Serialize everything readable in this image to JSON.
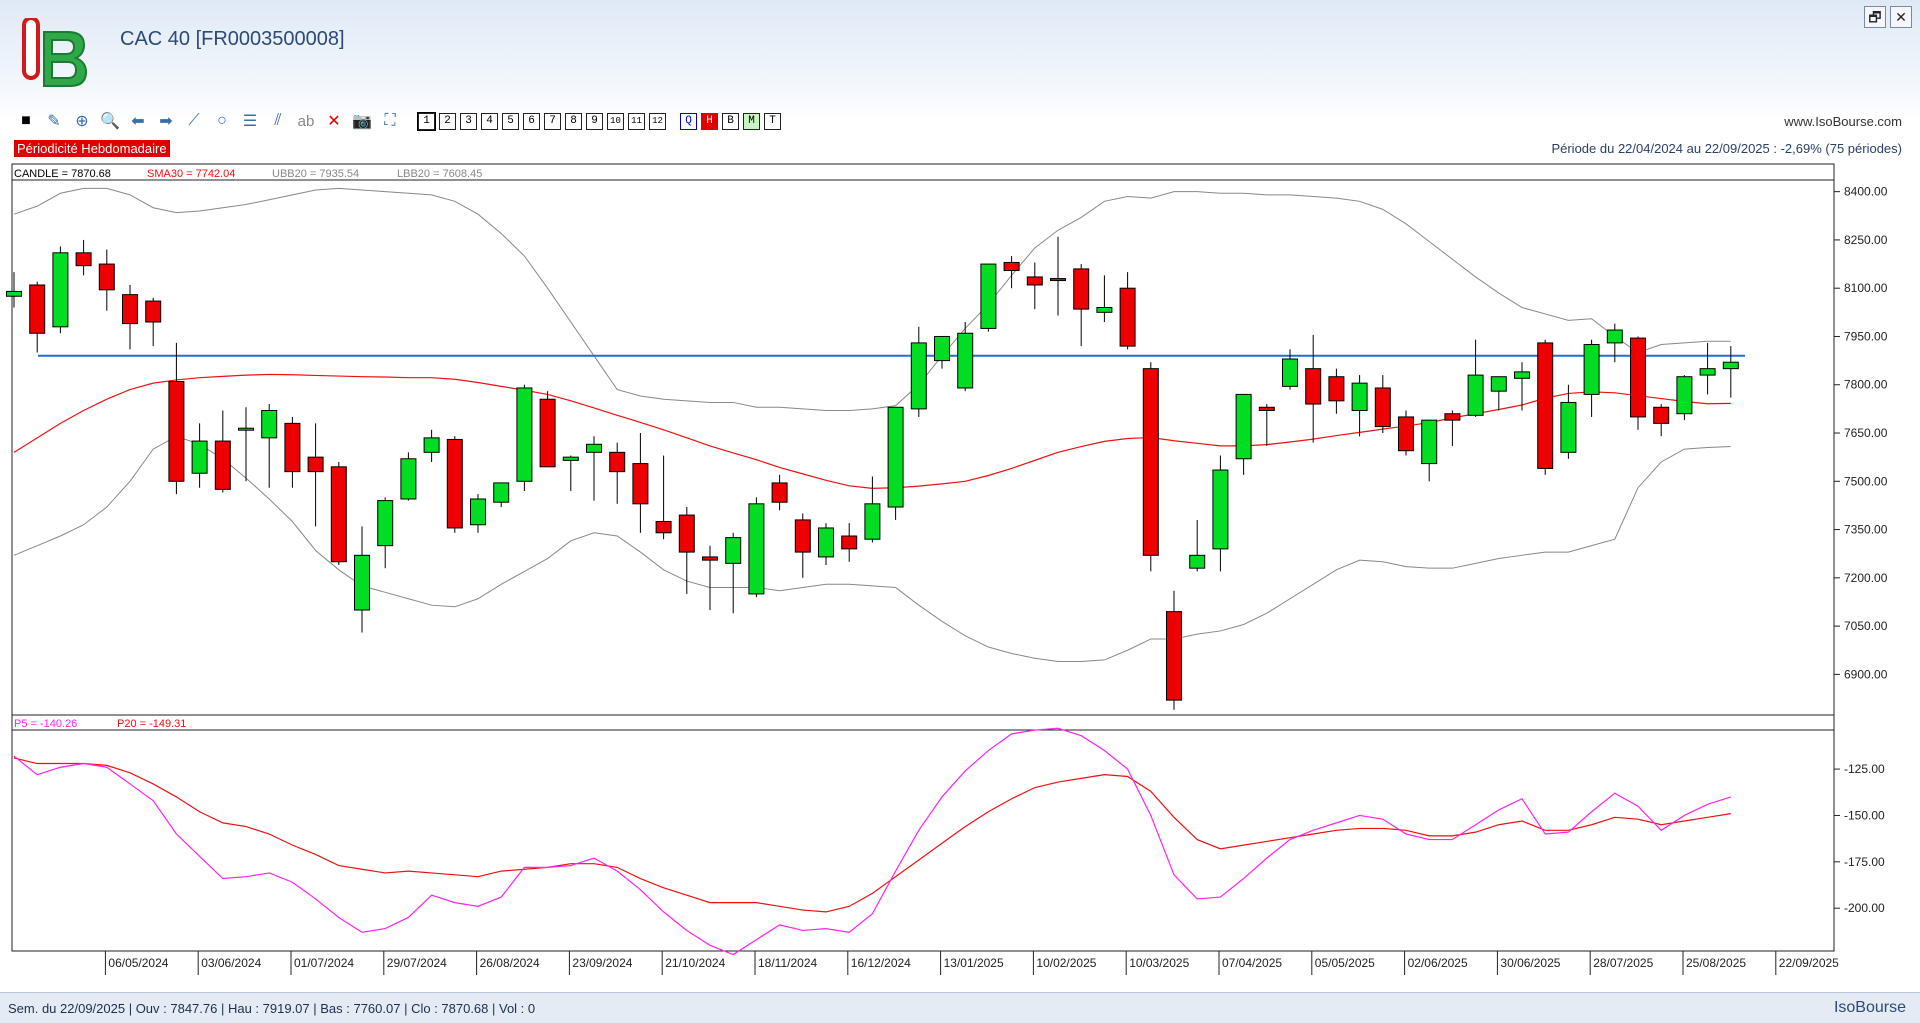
{
  "window": {
    "title": "CAC 40 [FR0003500008]",
    "restore_label": "🗗",
    "close_label": "✕"
  },
  "toolbar": {
    "tools": [
      {
        "name": "color-square-icon",
        "glyph": "■"
      },
      {
        "name": "pen-icon",
        "glyph": "✎"
      },
      {
        "name": "crosshair-icon",
        "glyph": "⊕"
      },
      {
        "name": "zoom-icon",
        "glyph": "🔍"
      },
      {
        "name": "arrow-left-icon",
        "glyph": "⬅"
      },
      {
        "name": "arrow-right-icon",
        "glyph": "➡"
      },
      {
        "name": "line-tool-icon",
        "glyph": "⟋"
      },
      {
        "name": "circle-tool-icon",
        "glyph": "○"
      },
      {
        "name": "fibonacci-icon",
        "glyph": "☰"
      },
      {
        "name": "channel-icon",
        "glyph": "⫽"
      },
      {
        "name": "text-tool-icon",
        "glyph": "ab"
      },
      {
        "name": "delete-icon",
        "glyph": "✕"
      },
      {
        "name": "camera-icon",
        "glyph": "📷"
      },
      {
        "name": "hierarchy-icon",
        "glyph": "⛶"
      }
    ],
    "periods": [
      "1",
      "2",
      "3",
      "4",
      "5",
      "6",
      "7",
      "8",
      "9",
      "10",
      "11",
      "12"
    ],
    "timeframes": [
      "Q",
      "H",
      "B",
      "M",
      "T"
    ]
  },
  "site_url": "www.IsoBourse.com",
  "periodicity_label": "Périodicité Hebdomadaire",
  "period_text": "Période du 22/04/2024 au 22/09/2025 : -2,69% (75 périodes)",
  "legend": {
    "candle": "CANDLE = 7870.68",
    "sma": "SMA30 = 7742.04",
    "ubb": "UBB20 = 7935.54",
    "lbb": "LBB20 = 7608.45",
    "p5": "P5 = -140.26",
    "p20": "P20 = -149.31"
  },
  "colors": {
    "up": "#00dd22",
    "down": "#ee0000",
    "sma": "#ee1111",
    "bands": "#888888",
    "hline": "#1e6fd0",
    "p5": "#ff22ee",
    "p20": "#ee1111"
  },
  "status": {
    "text": "Sem. du 22/09/2025 | Ouv : 7847.76 | Hau : 7919.07 | Bas : 7760.07 | Clo : 7870.68 | Vol : 0",
    "brand": "IsoBourse"
  },
  "chart_data": [
    {
      "type": "candlestick",
      "ylim": [
        6780,
        8430
      ],
      "y_ticks": [
        6900,
        7050,
        7200,
        7350,
        7500,
        7650,
        7800,
        7950,
        8100,
        8250,
        8400
      ],
      "y_tick_labels": [
        "6900.00",
        "7050.00",
        "7200.00",
        "7350.00",
        "7500.00",
        "7650.00",
        "7800.00",
        "7950.00",
        "8100.00",
        "8250.00",
        "8400.00"
      ],
      "x_tick_labels": [
        "06/05/2024",
        "03/06/2024",
        "01/07/2024",
        "29/07/2024",
        "26/08/2024",
        "23/09/2024",
        "21/10/2024",
        "18/11/2024",
        "16/12/2024",
        "13/01/2025",
        "10/02/2025",
        "10/03/2025",
        "07/04/2025",
        "05/05/2025",
        "02/06/2025",
        "30/06/2025",
        "28/07/2025",
        "25/08/2025",
        "22/09/2025"
      ],
      "horizontal_line": 7890,
      "ohlc": [
        [
          8075,
          8150,
          8040,
          8090
        ],
        [
          8110,
          8120,
          7900,
          7960
        ],
        [
          7980,
          8230,
          7960,
          8210
        ],
        [
          8210,
          8250,
          8140,
          8170
        ],
        [
          8175,
          8220,
          8030,
          8095
        ],
        [
          8080,
          8110,
          7910,
          7990
        ],
        [
          8060,
          8070,
          7920,
          7995
        ],
        [
          7810,
          7930,
          7460,
          7500
        ],
        [
          7525,
          7680,
          7480,
          7625
        ],
        [
          7625,
          7720,
          7465,
          7475
        ],
        [
          7660,
          7730,
          7500,
          7665
        ],
        [
          7635,
          7740,
          7480,
          7720
        ],
        [
          7680,
          7700,
          7480,
          7530
        ],
        [
          7575,
          7680,
          7360,
          7530
        ],
        [
          7545,
          7560,
          7240,
          7250
        ],
        [
          7100,
          7360,
          7030,
          7270
        ],
        [
          7300,
          7450,
          7230,
          7440
        ],
        [
          7445,
          7590,
          7440,
          7570
        ],
        [
          7590,
          7660,
          7560,
          7635
        ],
        [
          7630,
          7640,
          7340,
          7355
        ],
        [
          7365,
          7460,
          7340,
          7445
        ],
        [
          7435,
          7480,
          7420,
          7495
        ],
        [
          7500,
          7800,
          7470,
          7790
        ],
        [
          7755,
          7780,
          7560,
          7545
        ],
        [
          7565,
          7580,
          7470,
          7575
        ],
        [
          7590,
          7640,
          7440,
          7615
        ],
        [
          7590,
          7620,
          7430,
          7530
        ],
        [
          7555,
          7650,
          7340,
          7430
        ],
        [
          7375,
          7580,
          7320,
          7340
        ],
        [
          7395,
          7420,
          7150,
          7280
        ],
        [
          7265,
          7300,
          7100,
          7255
        ],
        [
          7245,
          7340,
          7090,
          7325
        ],
        [
          7150,
          7450,
          7140,
          7430
        ],
        [
          7495,
          7520,
          7410,
          7435
        ],
        [
          7380,
          7400,
          7200,
          7280
        ],
        [
          7265,
          7370,
          7240,
          7355
        ],
        [
          7330,
          7370,
          7250,
          7290
        ],
        [
          7320,
          7515,
          7310,
          7430
        ],
        [
          7420,
          7730,
          7380,
          7730
        ],
        [
          7725,
          7980,
          7700,
          7930
        ],
        [
          7875,
          7950,
          7850,
          7950
        ],
        [
          7790,
          7995,
          7780,
          7960
        ],
        [
          7975,
          8170,
          7965,
          8175
        ],
        [
          8180,
          8200,
          8100,
          8155
        ],
        [
          8135,
          8180,
          8035,
          8110
        ],
        [
          8130,
          8260,
          8015,
          8125
        ],
        [
          8160,
          8175,
          7920,
          8035
        ],
        [
          8025,
          8140,
          7995,
          8040
        ],
        [
          8100,
          8150,
          7910,
          7920
        ],
        [
          7850,
          7870,
          7220,
          7270
        ],
        [
          7095,
          7160,
          6790,
          6820
        ],
        [
          7230,
          7380,
          7220,
          7270
        ],
        [
          7290,
          7580,
          7220,
          7535
        ],
        [
          7570,
          7770,
          7520,
          7770
        ],
        [
          7730,
          7740,
          7610,
          7720
        ],
        [
          7795,
          7910,
          7785,
          7880
        ],
        [
          7850,
          7955,
          7620,
          7740
        ],
        [
          7825,
          7850,
          7710,
          7750
        ],
        [
          7720,
          7830,
          7640,
          7805
        ],
        [
          7790,
          7830,
          7650,
          7670
        ],
        [
          7700,
          7720,
          7580,
          7595
        ],
        [
          7555,
          7690,
          7500,
          7690
        ],
        [
          7710,
          7720,
          7610,
          7690
        ],
        [
          7705,
          7940,
          7700,
          7830
        ],
        [
          7780,
          7820,
          7720,
          7825
        ],
        [
          7820,
          7870,
          7720,
          7840
        ],
        [
          7930,
          7940,
          7520,
          7540
        ],
        [
          7590,
          7800,
          7570,
          7745
        ],
        [
          7770,
          7940,
          7700,
          7925
        ],
        [
          7930,
          7990,
          7870,
          7970
        ],
        [
          7945,
          7950,
          7660,
          7700
        ],
        [
          7730,
          7740,
          7640,
          7680
        ],
        [
          7710,
          7830,
          7690,
          7825
        ],
        [
          7830,
          7930,
          7770,
          7850
        ],
        [
          7850,
          7920,
          7760,
          7870
        ]
      ],
      "sma30": [
        7590,
        7635,
        7680,
        7720,
        7755,
        7785,
        7805,
        7815,
        7822,
        7826,
        7830,
        7832,
        7831,
        7829,
        7827,
        7825,
        7824,
        7822,
        7822,
        7817,
        7807,
        7795,
        7783,
        7770,
        7750,
        7728,
        7705,
        7683,
        7660,
        7635,
        7610,
        7588,
        7567,
        7543,
        7523,
        7503,
        7486,
        7478,
        7480,
        7485,
        7492,
        7500,
        7518,
        7540,
        7565,
        7590,
        7608,
        7624,
        7633,
        7636,
        7626,
        7618,
        7610,
        7610,
        7614,
        7622,
        7631,
        7642,
        7652,
        7662,
        7672,
        7682,
        7697,
        7710,
        7723,
        7737,
        7758,
        7773,
        7778,
        7775,
        7766,
        7757,
        7748,
        7741,
        7742
      ],
      "ubb20": [
        8330,
        8355,
        8395,
        8410,
        8410,
        8390,
        8350,
        8335,
        8340,
        8350,
        8360,
        8375,
        8390,
        8405,
        8410,
        8405,
        8400,
        8395,
        8390,
        8370,
        8330,
        8270,
        8200,
        8100,
        7995,
        7890,
        7785,
        7765,
        7755,
        7750,
        7745,
        7745,
        7730,
        7730,
        7725,
        7720,
        7720,
        7725,
        7735,
        7800,
        7890,
        7975,
        8050,
        8140,
        8225,
        8280,
        8320,
        8370,
        8385,
        8380,
        8400,
        8400,
        8395,
        8395,
        8390,
        8390,
        8385,
        8380,
        8370,
        8345,
        8300,
        8245,
        8190,
        8135,
        8085,
        8040,
        8020,
        8000,
        8005,
        7950,
        7900,
        7925,
        7930,
        7935,
        7935
      ],
      "lbb20": [
        7270,
        7300,
        7330,
        7365,
        7420,
        7500,
        7600,
        7640,
        7615,
        7570,
        7510,
        7445,
        7375,
        7285,
        7225,
        7175,
        7155,
        7135,
        7115,
        7110,
        7135,
        7180,
        7220,
        7260,
        7315,
        7340,
        7330,
        7280,
        7225,
        7190,
        7170,
        7170,
        7170,
        7160,
        7170,
        7180,
        7180,
        7175,
        7170,
        7115,
        7065,
        7020,
        6985,
        6965,
        6950,
        6940,
        6940,
        6945,
        6975,
        7010,
        7010,
        7025,
        7035,
        7055,
        7090,
        7135,
        7180,
        7225,
        7255,
        7250,
        7235,
        7230,
        7230,
        7245,
        7260,
        7270,
        7280,
        7280,
        7300,
        7320,
        7480,
        7560,
        7600,
        7605,
        7608
      ]
    },
    {
      "type": "line",
      "ylim": [
        -222,
        -105
      ],
      "y_ticks": [
        -125,
        -150,
        -175,
        -200
      ],
      "y_tick_labels": [
        "-125.00",
        "-150.00",
        "-175.00",
        "-200.00"
      ],
      "series": [
        {
          "name": "P5",
          "values": [
            -118,
            -128,
            -124,
            -122,
            -124,
            -133,
            -142,
            -160,
            -172,
            -184,
            -183,
            -181,
            -186,
            -195,
            -205,
            -213,
            -211,
            -205,
            -193,
            -197,
            -199,
            -194,
            -178,
            -178,
            -177,
            -173,
            -180,
            -190,
            -202,
            -212,
            -220,
            -225,
            -217,
            -209,
            -212,
            -211,
            -213,
            -203,
            -180,
            -158,
            -140,
            -126,
            -115,
            -106,
            -104,
            -103,
            -107,
            -115,
            -125,
            -150,
            -182,
            -195,
            -194,
            -184,
            -173,
            -163,
            -158,
            -154,
            -150,
            -152,
            -160,
            -163,
            -163,
            -155,
            -147,
            -141,
            -160,
            -159,
            -148,
            -138,
            -145,
            -158,
            -150,
            -144,
            -140
          ]
        },
        {
          "name": "P20",
          "values": [
            -119,
            -122,
            -122,
            -122,
            -123,
            -127,
            -133,
            -140,
            -148,
            -154,
            -156,
            -160,
            -166,
            -171,
            -177,
            -179,
            -181,
            -180,
            -181,
            -182,
            -183,
            -180,
            -179,
            -178,
            -176,
            -176,
            -178,
            -184,
            -189,
            -193,
            -197,
            -197,
            -197,
            -199,
            -201,
            -202,
            -199,
            -192,
            -183,
            -174,
            -165,
            -156,
            -148,
            -141,
            -135,
            -132,
            -130,
            -128,
            -129,
            -137,
            -151,
            -163,
            -168,
            -166,
            -164,
            -162,
            -160,
            -158,
            -157,
            -157,
            -158,
            -161,
            -161,
            -159,
            -155,
            -153,
            -158,
            -158,
            -155,
            -151,
            -152,
            -155,
            -153,
            -151,
            -149
          ]
        }
      ]
    }
  ]
}
